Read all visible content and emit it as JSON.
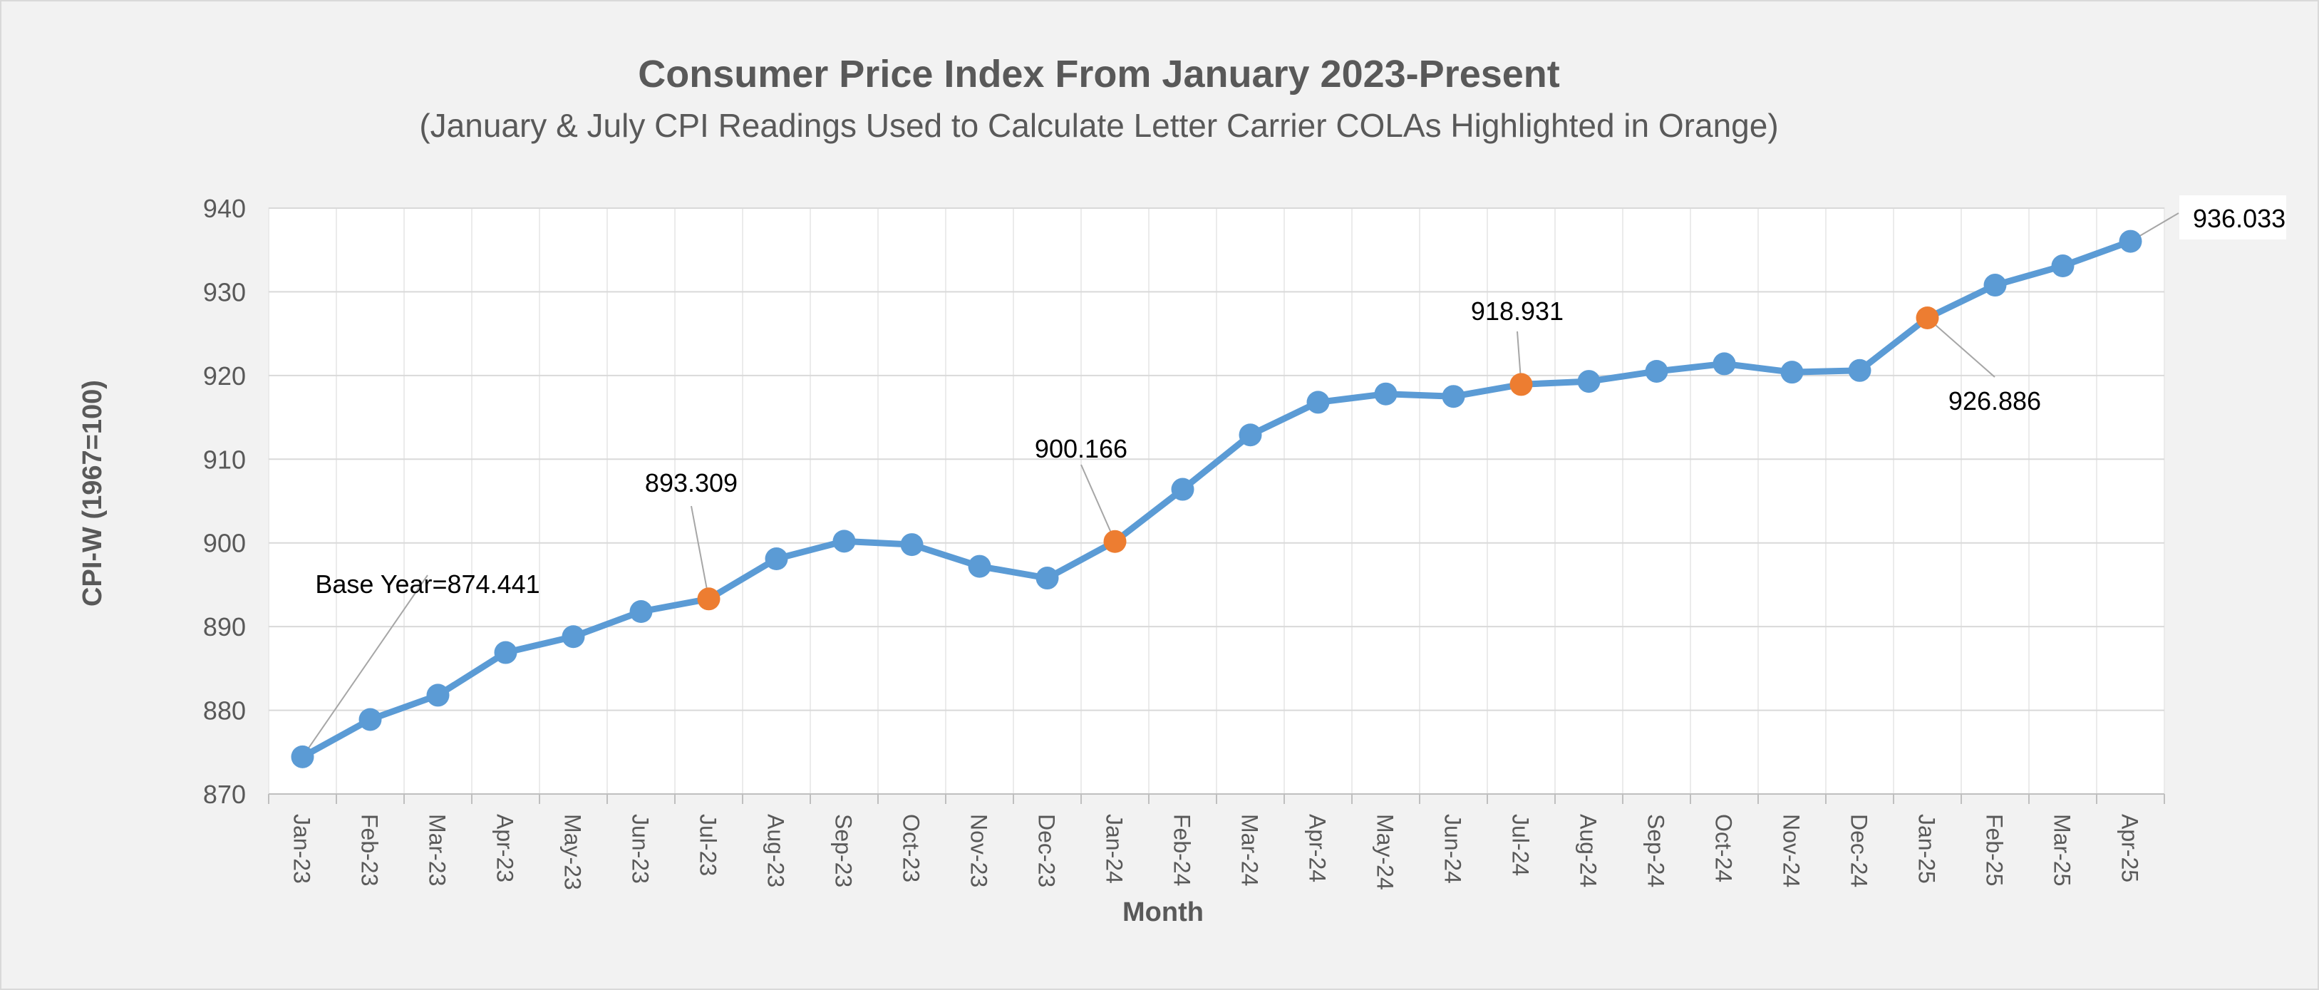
{
  "chart_data": {
    "type": "line",
    "title": "Consumer Price Index From January 2023-Present",
    "subtitle": "(January & July CPI Readings Used to Calculate Letter Carrier COLAs Highlighted in Orange)",
    "xlabel": "Month",
    "ylabel": "CPI-W (1967=100)",
    "ylim": [
      870,
      940
    ],
    "yticks": [
      870,
      880,
      890,
      900,
      910,
      920,
      930,
      940
    ],
    "grid": true,
    "categories": [
      "Jan-23",
      "Feb-23",
      "Mar-23",
      "Apr-23",
      "May-23",
      "Jun-23",
      "Jul-23",
      "Aug-23",
      "Sep-23",
      "Oct-23",
      "Nov-23",
      "Dec-23",
      "Jan-24",
      "Feb-24",
      "Mar-24",
      "Apr-24",
      "May-24",
      "Jun-24",
      "Jul-24",
      "Aug-24",
      "Sep-24",
      "Oct-24",
      "Nov-24",
      "Dec-24",
      "Jan-25",
      "Feb-25",
      "Mar-25",
      "Apr-25"
    ],
    "series": [
      {
        "values": [
          874.441,
          878.9,
          881.8,
          886.9,
          888.8,
          891.8,
          893.309,
          898.1,
          900.2,
          899.8,
          897.2,
          895.8,
          900.166,
          906.4,
          912.9,
          916.8,
          917.8,
          917.5,
          918.931,
          919.3,
          920.5,
          921.4,
          920.4,
          920.6,
          926.886,
          930.8,
          933.1,
          936.033
        ],
        "color": "#5b9bd5"
      }
    ],
    "highlight_indices": [
      6,
      12,
      18,
      24
    ],
    "highlight_color": "#ed7d31",
    "callouts": [
      {
        "index": 0,
        "text": "Base Year=874.441"
      },
      {
        "index": 6,
        "text": "893.309"
      },
      {
        "index": 12,
        "text": "900.166"
      },
      {
        "index": 18,
        "text": "918.931"
      },
      {
        "index": 24,
        "text": "926.886"
      },
      {
        "index": 27,
        "text": "936.033"
      }
    ]
  }
}
